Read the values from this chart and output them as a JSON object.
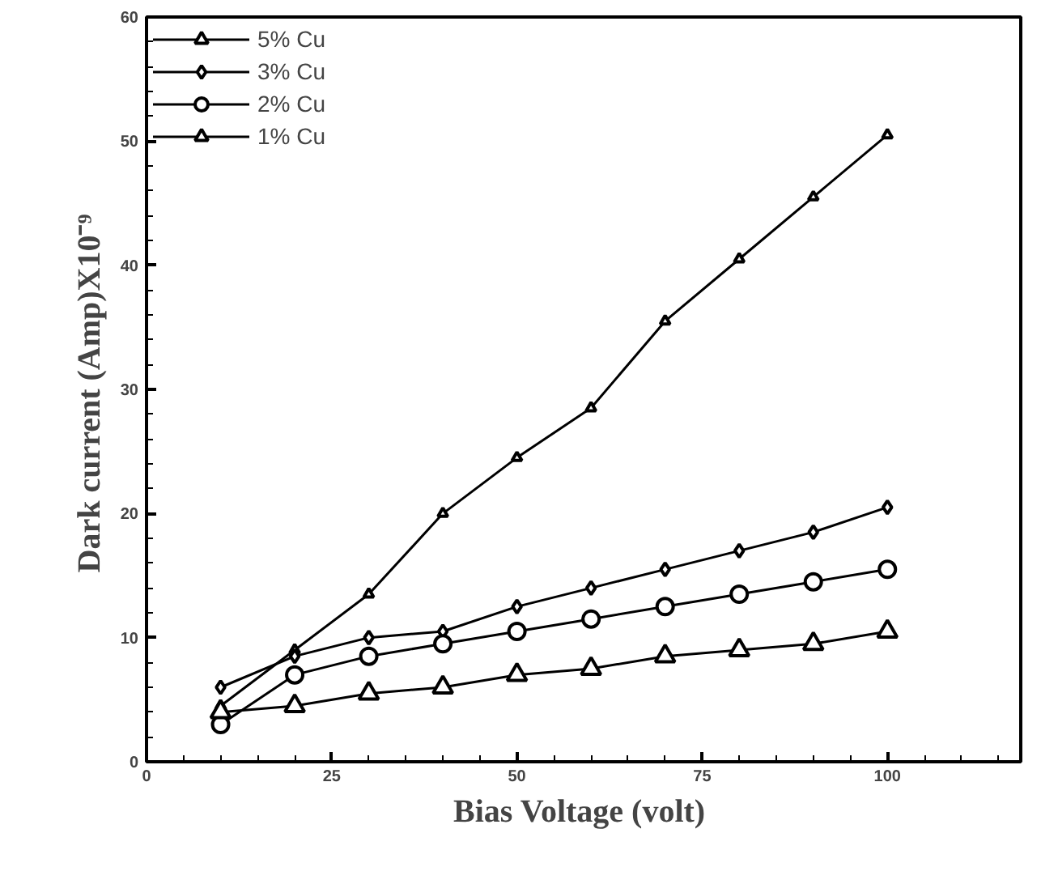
{
  "chart_data": {
    "type": "line",
    "xlabel": "Bias Voltage  (volt)",
    "ylabel": "Dark current  (Amp)X10⁻⁹",
    "x": [
      10,
      20,
      30,
      40,
      50,
      60,
      70,
      80,
      90,
      100
    ],
    "xlim": [
      0,
      118
    ],
    "xticks": [
      0,
      25,
      50,
      75,
      100
    ],
    "ylim": [
      0,
      60
    ],
    "yticks": [
      0,
      10,
      20,
      30,
      40,
      50,
      60
    ],
    "grid": false,
    "legend": "top left",
    "line_style": "solid",
    "series": [
      {
        "name": "5% Cu",
        "color": "#000000",
        "marker": "triangle",
        "values": [
          4.5,
          9,
          13.5,
          20,
          24.5,
          28.5,
          35.5,
          40.5,
          45.5,
          50.5
        ]
      },
      {
        "name": "3% Cu",
        "color": "#000000",
        "marker": "diamond",
        "values": [
          6,
          8.5,
          10,
          10.5,
          12.5,
          14,
          15.5,
          17,
          18.5,
          20.5
        ]
      },
      {
        "name": "2% Cu",
        "color": "#000000",
        "marker": "circle",
        "values": [
          3,
          7,
          8.5,
          9.5,
          10.5,
          11.5,
          12.5,
          13.5,
          14.5,
          15.5
        ]
      },
      {
        "name": "1% Cu",
        "color": "#000000",
        "marker": "triangle",
        "values": [
          4,
          4.5,
          5.5,
          6,
          7,
          7.5,
          8.5,
          9,
          9.5,
          10.5
        ]
      }
    ]
  }
}
